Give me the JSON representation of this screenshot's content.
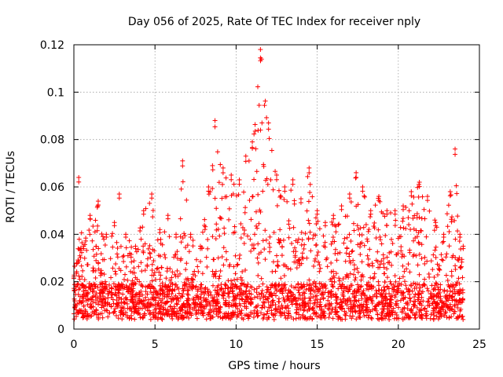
{
  "chart_data": {
    "type": "scatter",
    "title": "Day 056 of 2025, Rate Of TEC Index for receiver nply",
    "xlabel": "GPS time / hours",
    "ylabel": "ROTI / TECUs",
    "xlim": [
      0,
      25
    ],
    "ylim": [
      0,
      0.12
    ],
    "x_ticks": [
      "0",
      "5",
      "10",
      "15",
      "20",
      "25"
    ],
    "y_ticks": [
      "0",
      "0.02",
      "0.04",
      "0.06",
      "0.08",
      "0.1",
      "0.12"
    ],
    "grid": true,
    "marker": "+",
    "color": "#ff0000",
    "x_range_of_samples": [
      0,
      24
    ],
    "envelope": [
      {
        "x": 0.0,
        "y": 0.022
      },
      {
        "x": 0.3,
        "y": 0.064
      },
      {
        "x": 0.6,
        "y": 0.035
      },
      {
        "x": 1.0,
        "y": 0.048
      },
      {
        "x": 1.5,
        "y": 0.054
      },
      {
        "x": 2.0,
        "y": 0.04
      },
      {
        "x": 2.5,
        "y": 0.045
      },
      {
        "x": 2.8,
        "y": 0.057
      },
      {
        "x": 3.2,
        "y": 0.04
      },
      {
        "x": 3.8,
        "y": 0.035
      },
      {
        "x": 4.3,
        "y": 0.05
      },
      {
        "x": 4.8,
        "y": 0.057
      },
      {
        "x": 5.3,
        "y": 0.042
      },
      {
        "x": 5.8,
        "y": 0.048
      },
      {
        "x": 6.3,
        "y": 0.04
      },
      {
        "x": 6.7,
        "y": 0.071
      },
      {
        "x": 7.2,
        "y": 0.04
      },
      {
        "x": 7.8,
        "y": 0.035
      },
      {
        "x": 8.3,
        "y": 0.06
      },
      {
        "x": 8.7,
        "y": 0.088
      },
      {
        "x": 9.2,
        "y": 0.068
      },
      {
        "x": 9.7,
        "y": 0.065
      },
      {
        "x": 10.2,
        "y": 0.063
      },
      {
        "x": 10.6,
        "y": 0.073
      },
      {
        "x": 11.0,
        "y": 0.079
      },
      {
        "x": 11.5,
        "y": 0.118
      },
      {
        "x": 12.0,
        "y": 0.087
      },
      {
        "x": 12.5,
        "y": 0.065
      },
      {
        "x": 13.0,
        "y": 0.06
      },
      {
        "x": 13.5,
        "y": 0.063
      },
      {
        "x": 14.0,
        "y": 0.055
      },
      {
        "x": 14.5,
        "y": 0.068
      },
      {
        "x": 15.0,
        "y": 0.05
      },
      {
        "x": 15.5,
        "y": 0.045
      },
      {
        "x": 16.0,
        "y": 0.048
      },
      {
        "x": 16.5,
        "y": 0.052
      },
      {
        "x": 17.0,
        "y": 0.057
      },
      {
        "x": 17.4,
        "y": 0.066
      },
      {
        "x": 17.8,
        "y": 0.06
      },
      {
        "x": 18.3,
        "y": 0.05
      },
      {
        "x": 18.8,
        "y": 0.056
      },
      {
        "x": 19.3,
        "y": 0.05
      },
      {
        "x": 19.8,
        "y": 0.05
      },
      {
        "x": 20.3,
        "y": 0.052
      },
      {
        "x": 20.8,
        "y": 0.058
      },
      {
        "x": 21.3,
        "y": 0.062
      },
      {
        "x": 21.8,
        "y": 0.056
      },
      {
        "x": 22.3,
        "y": 0.045
      },
      {
        "x": 22.8,
        "y": 0.04
      },
      {
        "x": 23.2,
        "y": 0.058
      },
      {
        "x": 23.5,
        "y": 0.076
      },
      {
        "x": 23.8,
        "y": 0.04
      },
      {
        "x": 24.0,
        "y": 0.035
      }
    ],
    "baseline": {
      "min": 0.004,
      "typical": 0.012
    }
  }
}
